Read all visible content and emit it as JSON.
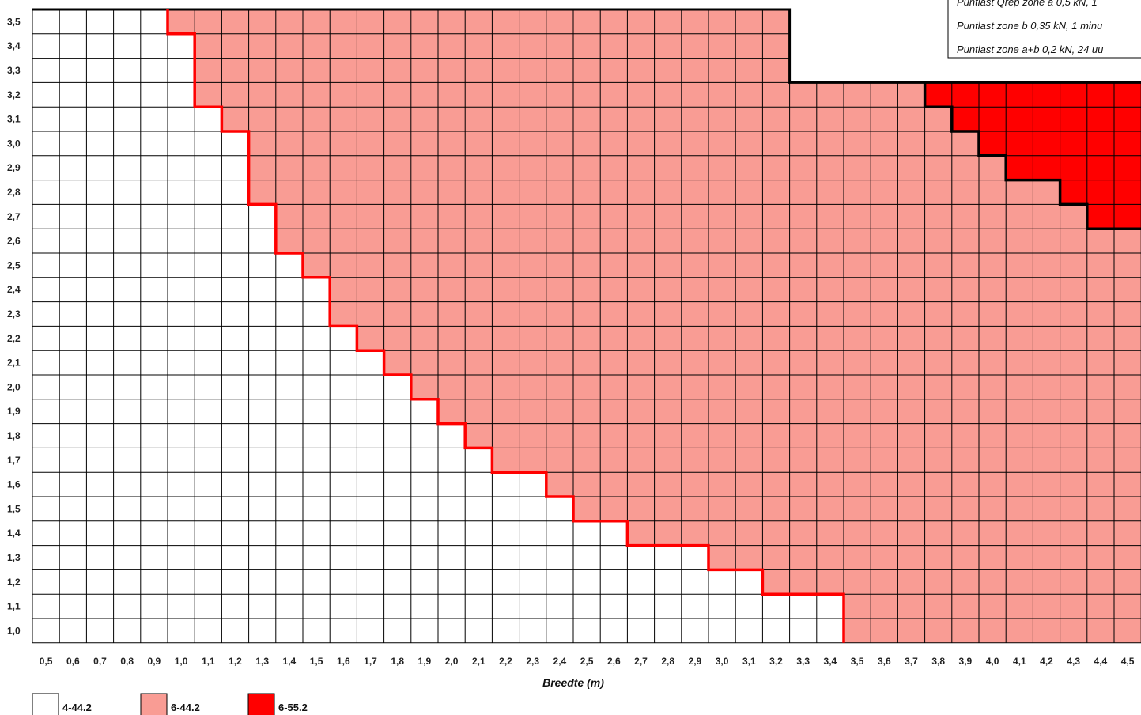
{
  "chart_data": {
    "type": "heatmap",
    "title": "",
    "xlabel": "Breedte (m)",
    "ylabel": "",
    "x_ticks": [
      "0,5",
      "0,6",
      "0,7",
      "0,8",
      "0,9",
      "1,0",
      "1,1",
      "1,2",
      "1,3",
      "1,4",
      "1,5",
      "1,6",
      "1,7",
      "1,8",
      "1,9",
      "2,0",
      "2,1",
      "2,2",
      "2,3",
      "2,4",
      "2,5",
      "2,6",
      "2,7",
      "2,8",
      "2,9",
      "3,0",
      "3,1",
      "3,2",
      "3,3",
      "3,4",
      "3,5",
      "3,6",
      "3,7",
      "3,8",
      "3,9",
      "4,0",
      "4,1",
      "4,2",
      "4,3",
      "4,4",
      "4,5"
    ],
    "y_ticks": [
      "3,5",
      "3,4",
      "3,3",
      "3,2",
      "3,1",
      "3,0",
      "2,9",
      "2,8",
      "2,7",
      "2,6",
      "2,5",
      "2,4",
      "2,3",
      "2,2",
      "2,1",
      "2,0",
      "1,9",
      "1,8",
      "1,7",
      "1,6",
      "1,5",
      "1,4",
      "1,3",
      "1,2",
      "1,1",
      "1,0"
    ],
    "xlim": [
      0.5,
      4.5
    ],
    "ylim": [
      1.0,
      3.5
    ],
    "legend": [
      {
        "label": "4-44.2",
        "color": "#ffffff"
      },
      {
        "label": "6-44.2",
        "color": "#f99c94"
      },
      {
        "label": "6-55.2",
        "color": "#ff0000"
      }
    ],
    "notes": [
      "Puntlast Qrep zone a 0,5 kN, 1",
      "Puntlast zone b 0,35 kN, 1 minu",
      "Puntlast zone a+b 0,2 kN, 24 uu"
    ],
    "boundary_4_to_6_44": [
      {
        "y": "3,5",
        "x_from": "1,0"
      },
      {
        "y": "3,4",
        "x_from": "1,1"
      },
      {
        "y": "3,3",
        "x_from": "1,1"
      },
      {
        "y": "3,2",
        "x_from": "1,1"
      },
      {
        "y": "3,1",
        "x_from": "1,2"
      },
      {
        "y": "3,0",
        "x_from": "1,3"
      },
      {
        "y": "2,9",
        "x_from": "1,3"
      },
      {
        "y": "2,8",
        "x_from": "1,3"
      },
      {
        "y": "2,7",
        "x_from": "1,4"
      },
      {
        "y": "2,6",
        "x_from": "1,4"
      },
      {
        "y": "2,5",
        "x_from": "1,5"
      },
      {
        "y": "2,4",
        "x_from": "1,6"
      },
      {
        "y": "2,3",
        "x_from": "1,6"
      },
      {
        "y": "2,2",
        "x_from": "1,7"
      },
      {
        "y": "2,1",
        "x_from": "1,8"
      },
      {
        "y": "2,0",
        "x_from": "1,9"
      },
      {
        "y": "1,9",
        "x_from": "2,0"
      },
      {
        "y": "1,8",
        "x_from": "2,1"
      },
      {
        "y": "1,7",
        "x_from": "2,2"
      },
      {
        "y": "1,6",
        "x_from": "2,4"
      },
      {
        "y": "1,5",
        "x_from": "2,5"
      },
      {
        "y": "1,4",
        "x_from": "2,7"
      },
      {
        "y": "1,3",
        "x_from": "3,0"
      },
      {
        "y": "1,2",
        "x_from": "3,2"
      },
      {
        "y": "1,1",
        "x_from": "3,5"
      },
      {
        "y": "1,0",
        "x_from": "3,5"
      }
    ],
    "region_6_55": [
      {
        "y": "3,2",
        "x_from": "3,8"
      },
      {
        "y": "3,1",
        "x_from": "3,9"
      },
      {
        "y": "3,0",
        "x_from": "4,0"
      },
      {
        "y": "2,9",
        "x_from": "4,1"
      },
      {
        "y": "2,8",
        "x_from": "4,3"
      },
      {
        "y": "2,7",
        "x_from": "4,4"
      }
    ],
    "max_length_by_width": [
      {
        "x_to": "3,2",
        "y_max": "3,5"
      },
      {
        "x_to": "4,5",
        "y_max": "3,2"
      }
    ]
  }
}
